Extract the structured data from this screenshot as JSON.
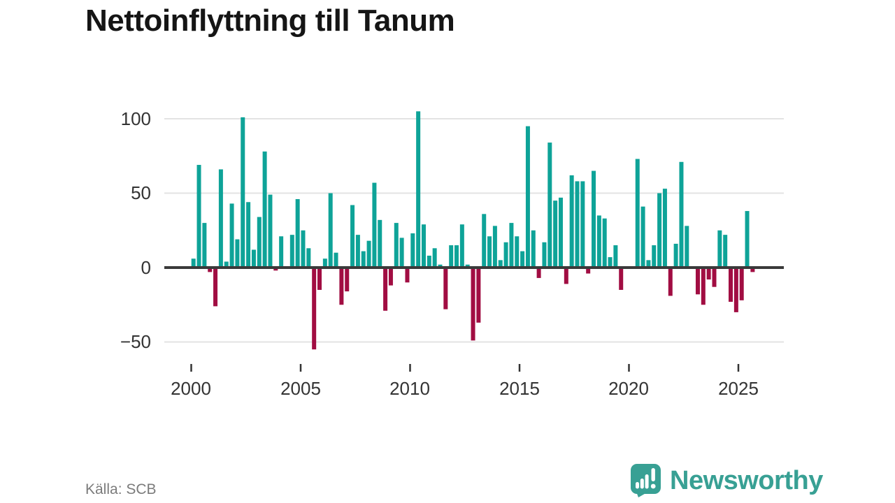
{
  "title": "Nettoinflyttning till Tanum",
  "source_note": "Källa: SCB",
  "branding": {
    "name": "Newsworthy",
    "icon": "speech-bubble-bar-chart-exclamation-icon"
  },
  "colors": {
    "positive_bar": "#0ea398",
    "negative_bar": "#a10d42",
    "axis": "#3a3a3a",
    "grid": "#e3e3e3",
    "tick": "#333333",
    "label_text": "#333333",
    "title_text": "#151515",
    "source_text": "#7b7b7b",
    "brand_teal": "#38a094"
  },
  "chart_data": {
    "type": "bar",
    "title": "Nettoinflyttning till Tanum",
    "xlabel": "",
    "ylabel": "",
    "frequency": "quarterly",
    "start_period": "2000 Q1",
    "end_period": "2025 Q3",
    "grid": "horizontal",
    "legend": "none",
    "ylim": [
      -62,
      112
    ],
    "y_ticks": [
      100,
      50,
      0,
      -50
    ],
    "y_tick_labels": [
      "100",
      "50",
      "0",
      "−50"
    ],
    "x_tick_labels": [
      "2000",
      "2005",
      "2010",
      "2015",
      "2020",
      "2025"
    ],
    "values": [
      6,
      69,
      30,
      -3,
      -26,
      66,
      4,
      43,
      19,
      101,
      44,
      12,
      34,
      78,
      49,
      -2,
      21,
      0,
      22,
      46,
      25,
      13,
      -55,
      -15,
      6,
      50,
      10,
      -25,
      -16,
      42,
      22,
      11,
      18,
      57,
      32,
      -29,
      -12,
      30,
      20,
      -10,
      23,
      105,
      29,
      8,
      13,
      2,
      -28,
      15,
      15,
      29,
      2,
      -49,
      -37,
      36,
      21,
      28,
      5,
      17,
      30,
      21,
      11,
      95,
      25,
      -7,
      17,
      84,
      45,
      47,
      -11,
      62,
      58,
      58,
      -4,
      65,
      35,
      33,
      7,
      15,
      -15,
      0,
      0,
      73,
      41,
      5,
      15,
      50,
      53,
      -19,
      16,
      71,
      28,
      0,
      -18,
      -25,
      -8,
      -13,
      25,
      22,
      -23,
      -30,
      -22,
      38,
      -3
    ]
  }
}
